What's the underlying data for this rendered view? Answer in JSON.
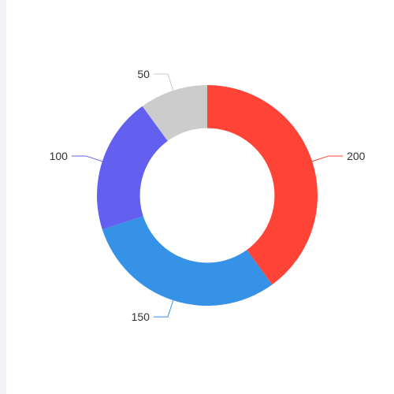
{
  "chart_data": {
    "type": "pie",
    "variant": "donut",
    "title": "",
    "categories": [
      "200",
      "150",
      "100",
      "50"
    ],
    "values": [
      200,
      150,
      100,
      50
    ],
    "labels": [
      "200",
      "150",
      "100",
      "50"
    ],
    "colors": [
      "#ff4337",
      "#3592e6",
      "#6460ef",
      "#cccccc"
    ],
    "inner_radius_ratio": 0.61,
    "start_angle_deg": -90,
    "direction": "clockwise",
    "legend": "none"
  }
}
